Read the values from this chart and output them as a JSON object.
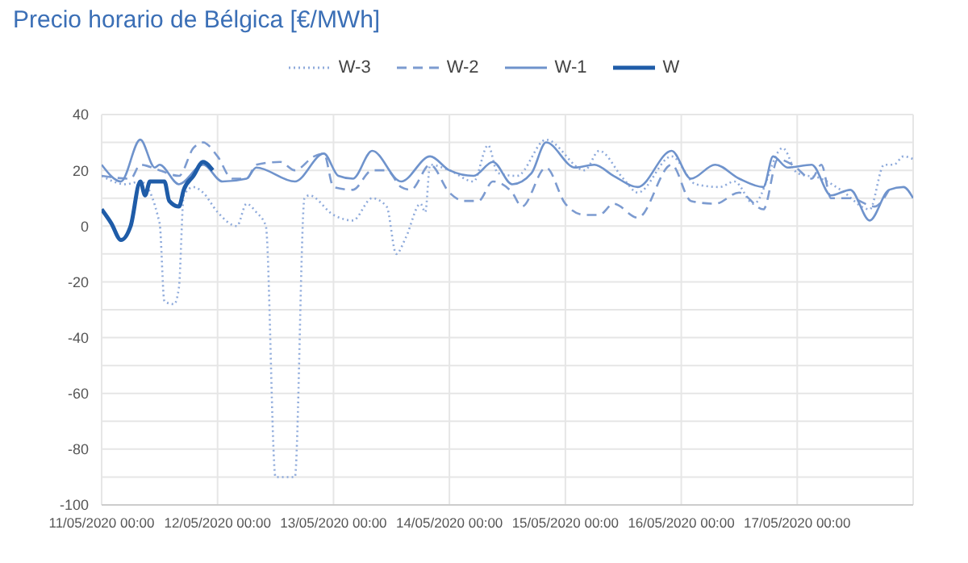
{
  "chart_data": {
    "type": "line",
    "title": "Precio horario de Bélgica [€/MWh]",
    "xlim": [
      "2020-05-11T00:00",
      "2020-05-18T00:00"
    ],
    "xticks": [
      {
        "value": "2020-05-11T00:00",
        "label": "11/05/2020 00:00"
      },
      {
        "value": "2020-05-12T00:00",
        "label": "12/05/2020 00:00"
      },
      {
        "value": "2020-05-13T00:00",
        "label": "13/05/2020 00:00"
      },
      {
        "value": "2020-05-14T00:00",
        "label": "14/05/2020 00:00"
      },
      {
        "value": "2020-05-15T00:00",
        "label": "15/05/2020 00:00"
      },
      {
        "value": "2020-05-16T00:00",
        "label": "16/05/2020 00:00"
      },
      {
        "value": "2020-05-17T00:00",
        "label": "17/05/2020 00:00"
      }
    ],
    "ylim": [
      -100,
      40
    ],
    "yticks": [
      -100,
      {
        "value": -90,
        "label": null
      },
      -80,
      {
        "value": -70,
        "label": null
      },
      -60,
      {
        "value": -50,
        "label": null
      },
      -40,
      {
        "value": -30,
        "label": null
      },
      -20,
      {
        "value": -10,
        "label": null
      },
      0,
      {
        "value": 10,
        "label": null
      },
      20,
      {
        "value": 30,
        "label": null
      },
      40
    ],
    "grid": true,
    "legend": "top",
    "marker": "none",
    "series": [
      {
        "name": "W-3",
        "color": "#8eaadb",
        "line_style": "dotted",
        "x": [
          "2020-05-11T00:00",
          "2020-05-11T05:00",
          "2020-05-11T08:00",
          "2020-05-11T12:00",
          "2020-05-11T13:00",
          "2020-05-11T15:00",
          "2020-05-11T16:00",
          "2020-05-11T17:00",
          "2020-05-11T19:00",
          "2020-05-11T21:00",
          "2020-05-12T00:00",
          "2020-05-12T04:00",
          "2020-05-12T06:00",
          "2020-05-12T08:00",
          "2020-05-12T10:00",
          "2020-05-12T12:00",
          "2020-05-12T16:00",
          "2020-05-12T18:00",
          "2020-05-12T19:00",
          "2020-05-13T00:00",
          "2020-05-13T04:00",
          "2020-05-13T08:00",
          "2020-05-13T11:00",
          "2020-05-13T13:00",
          "2020-05-13T15:00",
          "2020-05-13T18:00",
          "2020-05-13T19:00",
          "2020-05-13T20:00",
          "2020-05-14T00:00",
          "2020-05-14T05:00",
          "2020-05-14T08:00",
          "2020-05-14T10:00",
          "2020-05-14T14:00",
          "2020-05-14T20:00",
          "2020-05-15T04:00",
          "2020-05-15T07:00",
          "2020-05-15T12:00",
          "2020-05-15T15:00",
          "2020-05-15T22:00",
          "2020-05-16T03:00",
          "2020-05-16T08:00",
          "2020-05-16T11:00",
          "2020-05-16T15:00",
          "2020-05-16T21:00",
          "2020-05-17T00:00",
          "2020-05-17T05:00",
          "2020-05-17T09:00",
          "2020-05-17T15:00",
          "2020-05-17T18:00",
          "2020-05-17T20:00",
          "2020-05-17T22:00",
          "2020-05-18T00:00"
        ],
        "values": [
          18,
          15,
          16,
          1,
          -27,
          -28,
          -22,
          11,
          14,
          12,
          5,
          0,
          8,
          5,
          0,
          -90,
          -90,
          10,
          11,
          4,
          2,
          10,
          7,
          -10,
          -4,
          8,
          5,
          22,
          20,
          16,
          29,
          19,
          18,
          31,
          20,
          27,
          17,
          12,
          25,
          15,
          14,
          16,
          8,
          28,
          19,
          17,
          13,
          6,
          22,
          22,
          25,
          24
        ]
      },
      {
        "name": "W-2",
        "color": "#7c9bd0",
        "line_style": "dashed",
        "x": [
          "2020-05-11T00:00",
          "2020-05-11T06:00",
          "2020-05-11T08:00",
          "2020-05-11T12:00",
          "2020-05-11T16:00",
          "2020-05-11T19:00",
          "2020-05-11T21:00",
          "2020-05-12T00:00",
          "2020-05-12T03:00",
          "2020-05-12T06:00",
          "2020-05-12T08:00",
          "2020-05-12T13:00",
          "2020-05-12T16:00",
          "2020-05-12T20:00",
          "2020-05-12T22:00",
          "2020-05-13T00:00",
          "2020-05-13T04:00",
          "2020-05-13T08:00",
          "2020-05-13T11:00",
          "2020-05-13T14:00",
          "2020-05-13T16:00",
          "2020-05-13T20:00",
          "2020-05-14T00:00",
          "2020-05-14T03:00",
          "2020-05-14T06:00",
          "2020-05-14T09:00",
          "2020-05-14T13:00",
          "2020-05-14T15:00",
          "2020-05-14T20:00",
          "2020-05-15T00:00",
          "2020-05-15T04:00",
          "2020-05-15T07:00",
          "2020-05-15T10:00",
          "2020-05-15T15:00",
          "2020-05-15T22:00",
          "2020-05-16T02:00",
          "2020-05-16T07:00",
          "2020-05-16T12:00",
          "2020-05-16T17:00",
          "2020-05-16T20:00",
          "2020-05-16T23:00",
          "2020-05-17T03:00",
          "2020-05-17T05:00",
          "2020-05-17T07:00",
          "2020-05-17T11:00",
          "2020-05-17T16:00",
          "2020-05-17T19:00"
        ],
        "values": [
          18,
          17,
          22,
          20,
          18,
          28,
          30,
          25,
          17,
          17,
          22,
          23,
          20,
          25,
          26,
          14,
          13,
          20,
          20,
          14,
          13,
          22,
          12,
          9,
          9,
          16,
          12,
          7,
          21,
          8,
          4,
          4,
          8,
          3,
          22,
          9,
          8,
          12,
          6,
          24,
          22,
          17,
          22,
          10,
          10,
          7,
          13
        ]
      },
      {
        "name": "W-1",
        "color": "#6f93cc",
        "line_style": "solid",
        "x": [
          "2020-05-11T00:00",
          "2020-05-11T04:00",
          "2020-05-11T08:00",
          "2020-05-11T11:00",
          "2020-05-11T12:00",
          "2020-05-11T16:00",
          "2020-05-11T21:00",
          "2020-05-12T01:00",
          "2020-05-12T06:00",
          "2020-05-12T08:00",
          "2020-05-12T16:00",
          "2020-05-12T22:00",
          "2020-05-13T01:00",
          "2020-05-13T04:00",
          "2020-05-13T08:00",
          "2020-05-13T14:00",
          "2020-05-13T20:00",
          "2020-05-14T00:00",
          "2020-05-14T05:00",
          "2020-05-14T09:00",
          "2020-05-14T13:00",
          "2020-05-14T17:00",
          "2020-05-14T20:00",
          "2020-05-15T02:00",
          "2020-05-15T06:00",
          "2020-05-15T10:00",
          "2020-05-15T15:00",
          "2020-05-15T22:00",
          "2020-05-16T02:00",
          "2020-05-16T07:00",
          "2020-05-16T12:00",
          "2020-05-16T17:00",
          "2020-05-16T19:00",
          "2020-05-16T22:00",
          "2020-05-17T03:00",
          "2020-05-17T07:00",
          "2020-05-17T11:00",
          "2020-05-17T15:00",
          "2020-05-17T19:00",
          "2020-05-17T22:00",
          "2020-05-18T00:00"
        ],
        "values": [
          22,
          16,
          31,
          21,
          22,
          15,
          22,
          16,
          17,
          21,
          16,
          26,
          18,
          17,
          27,
          16,
          25,
          20,
          18,
          23,
          15,
          19,
          30,
          21,
          22,
          18,
          14,
          27,
          17,
          22,
          17,
          14,
          25,
          21,
          22,
          11,
          13,
          2,
          13,
          14,
          10
        ]
      },
      {
        "name": "W",
        "color": "#1f5ca8",
        "line_style": "solid",
        "x": [
          "2020-05-11T00:00",
          "2020-05-11T02:00",
          "2020-05-11T04:00",
          "2020-05-11T06:00",
          "2020-05-11T08:00",
          "2020-05-11T09:00",
          "2020-05-11T10:00",
          "2020-05-11T11:00",
          "2020-05-11T13:00",
          "2020-05-11T14:00",
          "2020-05-11T16:00",
          "2020-05-11T17:00",
          "2020-05-11T19:00",
          "2020-05-11T21:00",
          "2020-05-11T23:00"
        ],
        "values": [
          6,
          1,
          -5,
          0,
          16,
          11,
          16,
          16,
          16,
          9,
          7,
          13,
          18,
          23,
          20
        ]
      }
    ]
  }
}
